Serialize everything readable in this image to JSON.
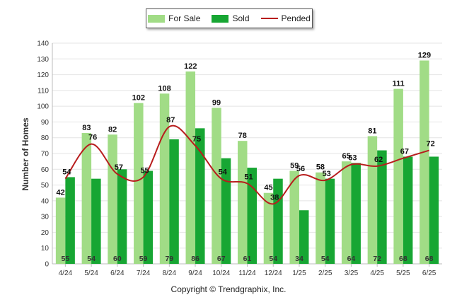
{
  "chart_data": {
    "type": "bar",
    "categories": [
      "4/24",
      "5/24",
      "6/24",
      "7/24",
      "8/24",
      "9/24",
      "10/24",
      "11/24",
      "12/24",
      "1/25",
      "2/25",
      "3/25",
      "4/25",
      "5/25",
      "6/25"
    ],
    "series": [
      {
        "name": "For Sale",
        "type": "bar",
        "color": "#a1dc86",
        "values": [
          42,
          83,
          82,
          102,
          108,
          122,
          99,
          78,
          45,
          59,
          58,
          65,
          81,
          111,
          129
        ]
      },
      {
        "name": "Sold",
        "type": "bar",
        "color": "#17a633",
        "values": [
          55,
          54,
          60,
          59,
          79,
          86,
          67,
          61,
          54,
          34,
          54,
          64,
          72,
          68,
          68
        ]
      },
      {
        "name": "Pended",
        "type": "line",
        "color": "#b81d1d",
        "values": [
          54,
          76,
          57,
          55,
          87,
          75,
          54,
          51,
          38,
          56,
          53,
          63,
          62,
          67,
          72
        ]
      }
    ],
    "ylabel": "Number of Homes",
    "ylim": [
      0,
      140
    ],
    "yticks": [
      0,
      10,
      20,
      30,
      40,
      50,
      60,
      70,
      80,
      90,
      100,
      110,
      120,
      130,
      140
    ],
    "grid": true,
    "legend_position": "top-center",
    "data_labels": true
  },
  "footer": {
    "copyright": "Copyright © Trendgraphix, Inc."
  }
}
